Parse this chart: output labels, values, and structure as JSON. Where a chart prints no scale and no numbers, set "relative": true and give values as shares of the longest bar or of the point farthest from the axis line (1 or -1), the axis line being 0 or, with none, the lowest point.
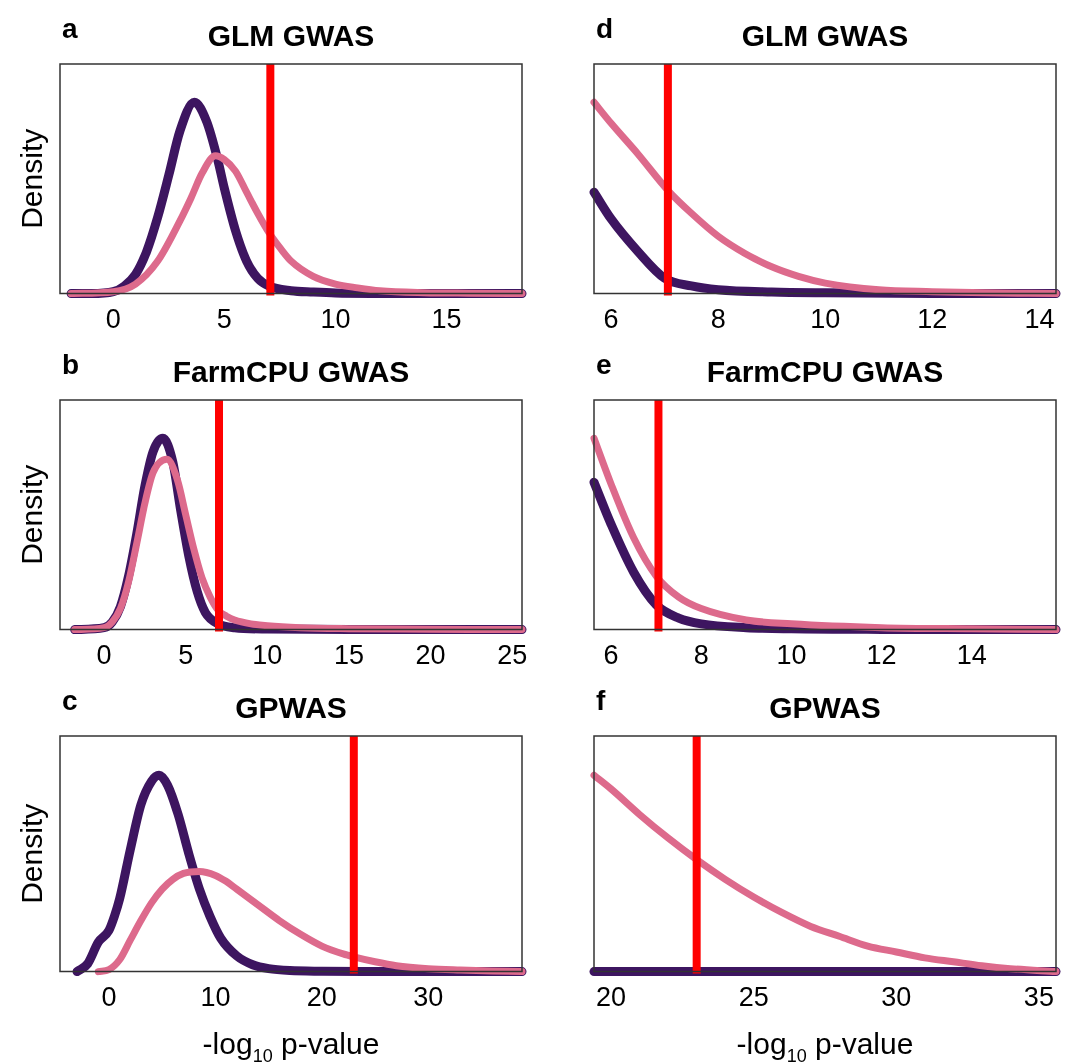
{
  "chart_data": [
    {
      "type": "line",
      "title": "GLM GWAS",
      "ylabel": "Density",
      "annotations": [
        "a"
      ],
      "relative": true,
      "xlim": [
        -2.4,
        18.4
      ],
      "xticks": [
        0,
        5,
        10,
        15
      ],
      "series": [
        {
          "color": "#3d1560",
          "x": [
            -1.9,
            -1,
            0,
            0.5,
            1,
            1.5,
            2,
            2.5,
            3,
            3.65,
            4.2,
            4.7,
            5,
            5.5,
            6,
            6.5,
            7,
            8,
            9,
            10,
            12,
            18.4
          ],
          "values": [
            0,
            0,
            0.01,
            0.04,
            0.1,
            0.22,
            0.4,
            0.62,
            0.85,
            1,
            0.9,
            0.7,
            0.55,
            0.33,
            0.17,
            0.08,
            0.04,
            0.015,
            0.008,
            0.003,
            0.001,
            0
          ]
        },
        {
          "color": "#dd6a8c",
          "x": [
            -1.9,
            0,
            1,
            2,
            3,
            3.5,
            4,
            4.6,
            5,
            5.5,
            6,
            6.5,
            7,
            7.5,
            8,
            9,
            10,
            11,
            12,
            14,
            16,
            18.4
          ],
          "values": [
            0,
            0.01,
            0.05,
            0.17,
            0.38,
            0.5,
            0.63,
            0.72,
            0.7,
            0.64,
            0.53,
            0.42,
            0.32,
            0.24,
            0.17,
            0.09,
            0.05,
            0.03,
            0.015,
            0.005,
            0.002,
            0
          ]
        }
      ],
      "ref_lines": [
        {
          "axis": "x",
          "value": 7.07,
          "color": "#ff0000"
        }
      ]
    },
    {
      "type": "line",
      "title": "GLM GWAS",
      "annotations": [
        "d"
      ],
      "relative": true,
      "xlim": [
        5.68,
        14.31
      ],
      "xticks": [
        6,
        8,
        10,
        12,
        14
      ],
      "series": [
        {
          "color": "#3d1560",
          "x": [
            5.68,
            6,
            6.5,
            7,
            7.5,
            8,
            9,
            10,
            12,
            14.31
          ],
          "values": [
            0.53,
            0.39,
            0.22,
            0.08,
            0.04,
            0.02,
            0.008,
            0.004,
            0.001,
            0
          ]
        },
        {
          "color": "#dd6a8c",
          "x": [
            5.68,
            6,
            6.5,
            7.06,
            7.5,
            8,
            8.5,
            9,
            9.5,
            10,
            11,
            12,
            13,
            14.31
          ],
          "values": [
            1,
            0.89,
            0.73,
            0.54,
            0.42,
            0.3,
            0.21,
            0.14,
            0.09,
            0.055,
            0.02,
            0.01,
            0.004,
            0
          ]
        }
      ],
      "ref_lines": [
        {
          "axis": "x",
          "value": 7.06,
          "color": "#ff0000"
        }
      ]
    },
    {
      "type": "line",
      "title": "FarmCPU GWAS",
      "ylabel": "Density",
      "annotations": [
        "b"
      ],
      "relative": true,
      "xlim": [
        -2.7,
        25.6
      ],
      "xticks": [
        0,
        5,
        10,
        15,
        20,
        25
      ],
      "series": [
        {
          "color": "#3d1560",
          "x": [
            -1.8,
            0,
            0.5,
            1,
            1.5,
            2,
            2.5,
            3,
            3.6,
            4.2,
            4.7,
            5.2,
            5.7,
            6.2,
            7,
            8,
            10,
            15,
            25.6
          ],
          "values": [
            0,
            0.01,
            0.04,
            0.12,
            0.28,
            0.5,
            0.75,
            0.93,
            1,
            0.88,
            0.62,
            0.38,
            0.2,
            0.09,
            0.03,
            0.01,
            0.003,
            0.001,
            0
          ]
        },
        {
          "color": "#dd6a8c",
          "x": [
            -1.8,
            0,
            0.5,
            1,
            1.5,
            2,
            2.5,
            3,
            3.85,
            4.5,
            5,
            5.5,
            6,
            6.5,
            7,
            7.5,
            8,
            9,
            10,
            12,
            15,
            20,
            25.6
          ],
          "values": [
            0,
            0.01,
            0.04,
            0.11,
            0.25,
            0.45,
            0.66,
            0.82,
            0.89,
            0.78,
            0.6,
            0.42,
            0.27,
            0.17,
            0.1,
            0.07,
            0.05,
            0.03,
            0.02,
            0.01,
            0.005,
            0.002,
            0
          ]
        }
      ],
      "ref_lines": [
        {
          "axis": "x",
          "value": 7.04,
          "color": "#ff0000"
        }
      ]
    },
    {
      "type": "line",
      "title": "FarmCPU GWAS",
      "annotations": [
        "e"
      ],
      "relative": true,
      "xlim": [
        5.62,
        15.87
      ],
      "xticks": [
        6,
        8,
        10,
        12,
        14
      ],
      "series": [
        {
          "color": "#3d1560",
          "x": [
            5.62,
            6,
            6.5,
            7,
            7.5,
            8,
            9,
            10,
            12,
            15.87
          ],
          "values": [
            0.77,
            0.55,
            0.3,
            0.13,
            0.06,
            0.03,
            0.01,
            0.004,
            0.001,
            0
          ]
        },
        {
          "color": "#dd6a8c",
          "x": [
            5.62,
            6,
            6.5,
            7,
            7.5,
            8,
            9,
            10,
            12,
            14,
            15.87
          ],
          "values": [
            1,
            0.76,
            0.48,
            0.28,
            0.17,
            0.11,
            0.05,
            0.03,
            0.01,
            0.004,
            0
          ]
        }
      ],
      "ref_lines": [
        {
          "axis": "x",
          "value": 7.05,
          "color": "#ff0000"
        }
      ]
    },
    {
      "type": "line",
      "title": "GPWAS",
      "ylabel": "Density",
      "xlabel": "-log$_{10}$ p-value",
      "annotations": [
        "c"
      ],
      "relative": true,
      "xlim": [
        -4.6,
        38.8
      ],
      "xticks": [
        0,
        10,
        20,
        30
      ],
      "series": [
        {
          "color": "#3d1560",
          "x": [
            -3,
            -2,
            -1,
            0,
            0.5,
            1,
            2,
            3,
            4,
            4.7,
            5.5,
            6.5,
            7.5,
            8.5,
            9.5,
            10.5,
            12,
            13.5,
            15,
            17,
            20,
            25,
            38.8
          ],
          "values": [
            0,
            0.04,
            0.15,
            0.21,
            0.28,
            0.37,
            0.62,
            0.85,
            0.97,
            1,
            0.95,
            0.8,
            0.6,
            0.42,
            0.28,
            0.17,
            0.08,
            0.035,
            0.015,
            0.005,
            0.002,
            0.001,
            0
          ]
        },
        {
          "color": "#dd6a8c",
          "x": [
            -1,
            0,
            1,
            2,
            3,
            4,
            5,
            6,
            7,
            8.5,
            10,
            11,
            12,
            14,
            16,
            18,
            20,
            22,
            23,
            25,
            27,
            30,
            33,
            36,
            38.8
          ],
          "values": [
            0,
            0.01,
            0.06,
            0.16,
            0.26,
            0.35,
            0.42,
            0.47,
            0.5,
            0.51,
            0.49,
            0.46,
            0.42,
            0.34,
            0.26,
            0.19,
            0.13,
            0.09,
            0.075,
            0.05,
            0.03,
            0.015,
            0.008,
            0.003,
            0
          ]
        }
      ],
      "ref_lines": [
        {
          "axis": "x",
          "value": 23.0,
          "color": "#ff0000"
        }
      ]
    },
    {
      "type": "line",
      "title": "GPWAS",
      "xlabel": "-log$_{10}$ p-value",
      "annotations": [
        "f"
      ],
      "relative": true,
      "xlim": [
        19.4,
        35.6
      ],
      "xticks": [
        20,
        25,
        30,
        35
      ],
      "series": [
        {
          "color": "#3d1560",
          "x": [
            19.4,
            25,
            30,
            35.6
          ],
          "values": [
            0,
            0,
            0,
            0
          ]
        },
        {
          "color": "#dd6a8c",
          "x": [
            19.4,
            20,
            21,
            22,
            23,
            24,
            25,
            26,
            27,
            28,
            29,
            30,
            31,
            32,
            33,
            34,
            35.6
          ],
          "values": [
            1,
            0.93,
            0.8,
            0.68,
            0.57,
            0.47,
            0.38,
            0.3,
            0.23,
            0.18,
            0.13,
            0.1,
            0.07,
            0.05,
            0.03,
            0.015,
            0
          ]
        }
      ],
      "ref_lines": [
        {
          "axis": "x",
          "value": 23.0,
          "color": "#ff0000"
        }
      ]
    }
  ]
}
